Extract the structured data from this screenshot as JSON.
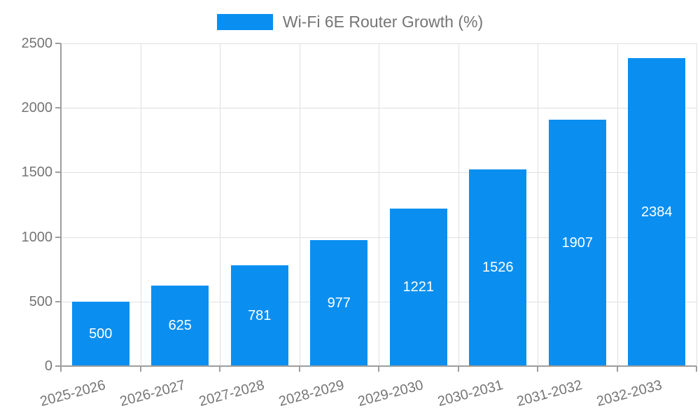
{
  "legend": {
    "label": "Wi-Fi 6E Router Growth (%)"
  },
  "chart_data": {
    "type": "bar",
    "title": "Wi-Fi 6E Router Growth (%)",
    "categories": [
      "2025-2026",
      "2026-2027",
      "2027-2028",
      "2028-2029",
      "2029-2030",
      "2030-2031",
      "2031-2032",
      "2032-2033"
    ],
    "values": [
      500,
      625,
      781,
      977,
      1221,
      1526,
      1907,
      2384
    ],
    "value_labels": [
      "500",
      "625",
      "781",
      "977",
      "1221",
      "1526",
      "1907",
      "2384"
    ],
    "ytick_labels": [
      "0",
      "500",
      "1000",
      "1500",
      "2000",
      "2500"
    ],
    "yticks": [
      0,
      500,
      1000,
      1500,
      2000,
      2500
    ],
    "ylim": [
      0,
      2500
    ],
    "xlabel": "",
    "ylabel": "",
    "grid": true,
    "legend_position": "top-center",
    "x_tick_rotation_deg": 15,
    "colors": {
      "bar": "#0a8ff1",
      "grid_line": "#e0e0e0",
      "axis_line": "#9e9e9e",
      "tick_text": "#757575",
      "value_label_text": "#ffffff",
      "background": "#ffffff"
    }
  }
}
